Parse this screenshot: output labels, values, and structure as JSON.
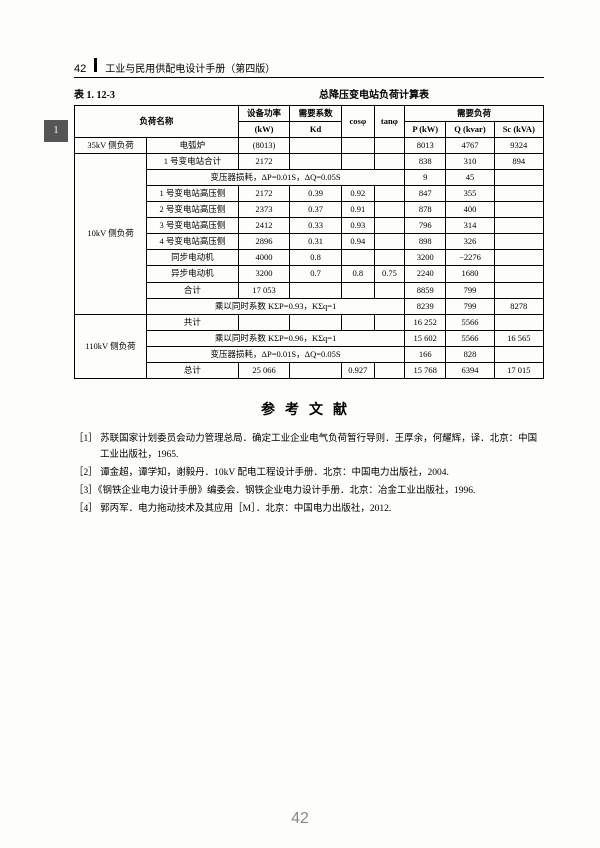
{
  "page": {
    "topNumber": "42",
    "bookTitle": "工业与民用供配电设计手册（第四版）",
    "bottomNumber": "42"
  },
  "tabMarker": "1",
  "table": {
    "number": "表 1. 12-3",
    "title": "总降压变电站负荷计算表",
    "headers": {
      "loadName": "负荷名称",
      "equipPower": "设备功率",
      "equipPowerUnit": "(kW)",
      "demandFactor": "需要系数",
      "demandFactorSym": "Kd",
      "cosphi": "cosφ",
      "tanphi": "tanφ",
      "demandLoad": "需要负荷",
      "p": "P (kW)",
      "q": "Q (kvar)",
      "s": "Sc (kVA)"
    },
    "rows": [
      {
        "c0": "35kV 侧负荷",
        "c1": "电弧炉",
        "c2": "(8013)",
        "c3": "",
        "c4": "",
        "c5": "",
        "c6": "8013",
        "c7": "4767",
        "c8": "9324"
      },
      {
        "span": true,
        "label": "",
        "c1": "1 号变电站合计",
        "c2": "2172",
        "c3": "",
        "c4": "",
        "c5": "",
        "c6": "838",
        "c7": "310",
        "c8": "894"
      },
      {
        "merge": true,
        "text": "变压器损耗，ΔP=0.01S，ΔQ=0.05S",
        "c6": "9",
        "c7": "45",
        "c8": ""
      },
      {
        "c0rowspan": true,
        "c1": "1 号变电站高压侧",
        "c2": "2172",
        "c3": "0.39",
        "c4": "0.92",
        "c5": "",
        "c6": "847",
        "c7": "355",
        "c8": ""
      },
      {
        "c1": "2 号变电站高压侧",
        "c2": "2373",
        "c3": "0.37",
        "c4": "0.91",
        "c5": "",
        "c6": "878",
        "c7": "400",
        "c8": ""
      },
      {
        "c1": "3 号变电站高压侧",
        "c2": "2412",
        "c3": "0.33",
        "c4": "0.93",
        "c5": "",
        "c6": "796",
        "c7": "314",
        "c8": ""
      },
      {
        "c1": "4 号变电站高压侧",
        "c2": "2896",
        "c3": "0.31",
        "c4": "0.94",
        "c5": "",
        "c6": "898",
        "c7": "326",
        "c8": ""
      },
      {
        "c1": "同步电动机",
        "c2": "4000",
        "c3": "0.8",
        "c4": "",
        "c5": "",
        "c6": "3200",
        "c7": "−2276",
        "c8": ""
      },
      {
        "c1": "异步电动机",
        "c2": "3200",
        "c3": "0.7",
        "c4": "0.8",
        "c5": "0.75",
        "c6": "2240",
        "c7": "1680",
        "c8": ""
      },
      {
        "c1": "合计",
        "c2": "17 053",
        "c3": "",
        "c4": "",
        "c5": "",
        "c6": "8859",
        "c7": "799",
        "c8": ""
      },
      {
        "merge": true,
        "text": "乘以同时系数 KΣP=0.93，KΣq=1",
        "c6": "8239",
        "c7": "799",
        "c8": "8278"
      },
      {
        "c0": "",
        "c1": "共计",
        "c2": "",
        "c3": "",
        "c4": "",
        "c5": "",
        "c6": "16 252",
        "c7": "5566",
        "c8": ""
      },
      {
        "merge": true,
        "text": "乘以同时系数 KΣP=0.96，KΣq=1",
        "c6": "15 602",
        "c7": "5566",
        "c8": "16 565"
      },
      {
        "merge": true,
        "text": "变压器损耗，ΔP=0.01S，ΔQ=0.05S",
        "c6": "166",
        "c7": "828",
        "c8": ""
      },
      {
        "c1": "总计",
        "c2": "25 066",
        "c3": "",
        "c4": "0.927",
        "c5": "",
        "c6": "15 768",
        "c7": "6394",
        "c8": "17 015"
      }
    ],
    "label10kv": "10kV 侧负荷",
    "label110kv": "110kV 侧负荷"
  },
  "refs": {
    "title": "参考文献",
    "items": [
      "［1］ 苏联国家计划委员会动力管理总局．确定工业企业电气负荷暂行导则．王厚余，何耀辉，译．北京：中国工业出版社，1965.",
      "［2］ 谭金超，谭学知，谢毅丹．10kV 配电工程设计手册．北京：中国电力出版社，2004.",
      "［3］《钢铁企业电力设计手册》编委会．钢铁企业电力设计手册．北京：冶金工业出版社，1996.",
      "［4］ 郭丙军．电力拖动技术及其应用［M］．北京：中国电力出版社，2012."
    ]
  }
}
